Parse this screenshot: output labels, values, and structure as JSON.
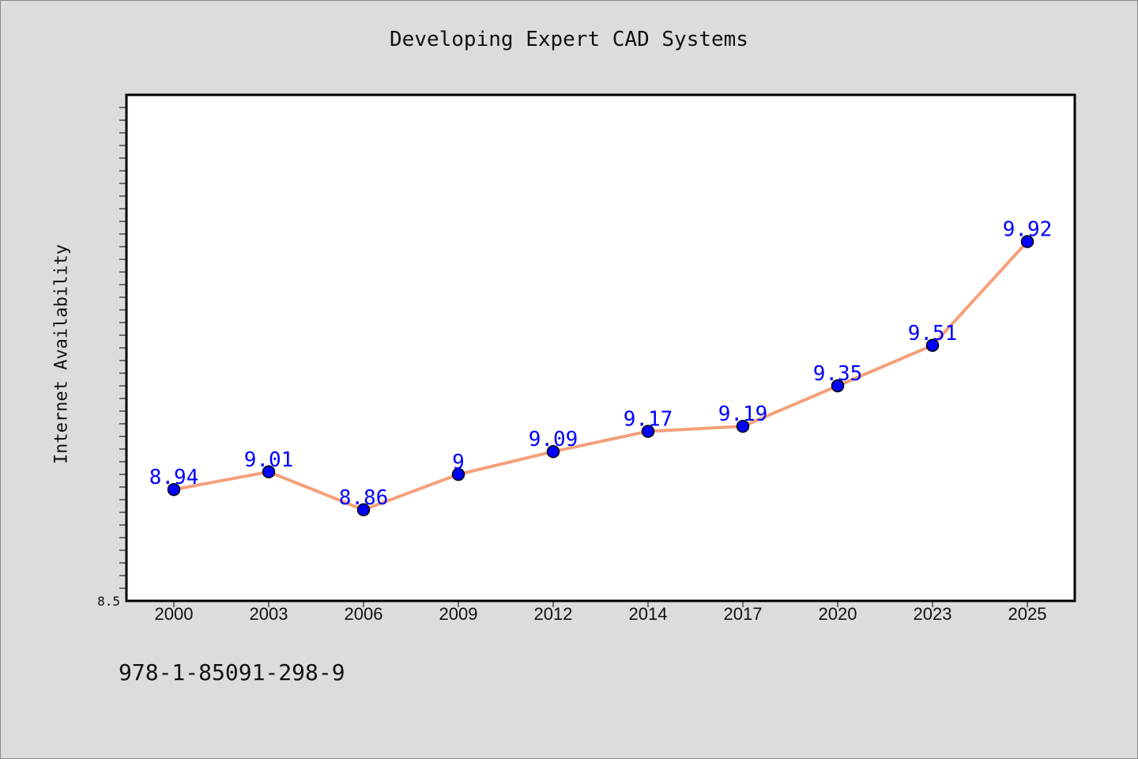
{
  "page": {
    "title": "Developing Expert CAD Systems",
    "ylabel": "Internet Availability",
    "footer_code": "978-1-85091-298-9"
  },
  "chart_data": {
    "type": "line",
    "title": "Developing Expert CAD Systems",
    "xlabel": "",
    "ylabel": "Internet Availability",
    "categories": [
      "2000",
      "2003",
      "2006",
      "2009",
      "2012",
      "2014",
      "2017",
      "2020",
      "2023",
      "2025"
    ],
    "series": [
      {
        "values": [
          8.94,
          9.01,
          8.86,
          9.0,
          9.09,
          9.17,
          9.19,
          9.35,
          9.51,
          9.92
        ],
        "data_labels": [
          "8.94",
          "9.01",
          "8.86",
          "9",
          "9.09",
          "9.17",
          "9.19",
          "9.35",
          "9.51",
          "9.92"
        ]
      }
    ],
    "ylim": [
      8.5,
      10.5
    ],
    "y_tick_labels": [
      {
        "value": 8.5,
        "label": "8.5"
      }
    ],
    "grid": false,
    "colors": {
      "line": "#f4a07a",
      "marker": "#0000ff",
      "marker_edge": "#000000",
      "data_label": "#0000ff",
      "plot_background": "#ffffff",
      "page_background": "#dcdcdc"
    }
  }
}
